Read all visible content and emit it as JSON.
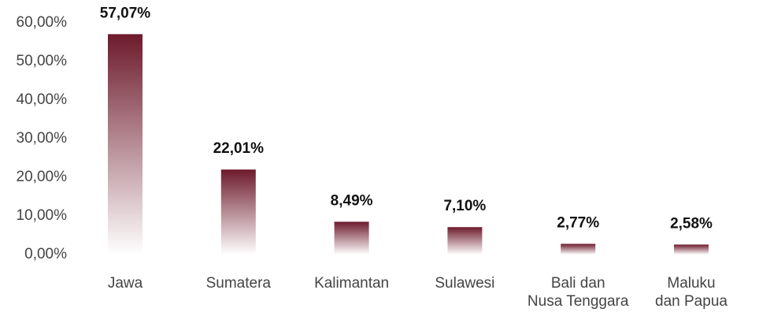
{
  "chart_data": {
    "type": "bar",
    "categories": [
      "Jawa",
      "Sumatera",
      "Kalimantan",
      "Sulawesi",
      "Bali dan\nNusa Tenggara",
      "Maluku\ndan Papua"
    ],
    "values": [
      57.07,
      22.01,
      8.49,
      7.1,
      2.77,
      2.58
    ],
    "value_labels": [
      "57,07%",
      "22,01%",
      "8,49%",
      "7,10%",
      "2,77%",
      "2,58%"
    ],
    "color": "#6d1a2c",
    "ylim": [
      0,
      60
    ],
    "yticks": [
      {
        "value": 0,
        "label": "0,00%"
      },
      {
        "value": 10,
        "label": "10,00%"
      },
      {
        "value": 20,
        "label": "20,00%"
      },
      {
        "value": 30,
        "label": "30,00%"
      },
      {
        "value": 40,
        "label": "40,00%"
      },
      {
        "value": 50,
        "label": "50,00%"
      },
      {
        "value": 60,
        "label": "60,00%"
      }
    ],
    "grid": false
  }
}
